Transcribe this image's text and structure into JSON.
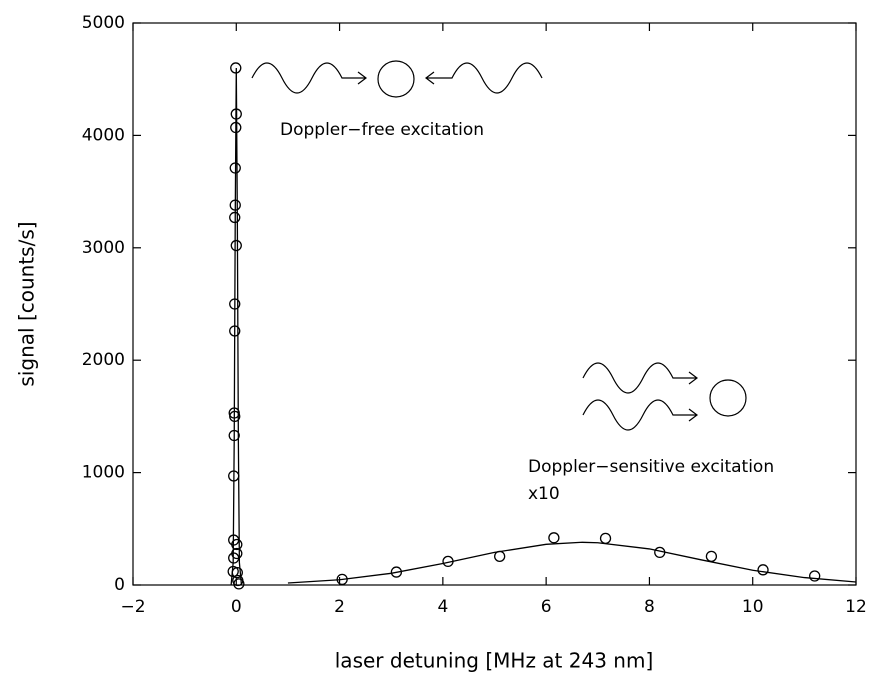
{
  "chart_data": {
    "type": "scatter",
    "x_label": "laser detuning [MHz at 243 nm]",
    "y_label": "signal [counts/s]",
    "annotations": [
      "Doppler−free excitation",
      "Doppler−sensitive excitation",
      "x10"
    ],
    "xlim": [
      -2,
      12
    ],
    "ylim": [
      0,
      5000
    ],
    "xticks": [
      {
        "value": -2,
        "label": "−2"
      },
      0,
      2,
      4,
      6,
      8,
      10,
      12
    ],
    "yticks": [
      0,
      1000,
      2000,
      3000,
      4000,
      5000
    ],
    "series": [
      {
        "style": "points",
        "color": "#000000",
        "x": [
          -0.01,
          0.0,
          -0.01,
          -0.02,
          -0.02,
          -0.03,
          0.0,
          -0.03,
          -0.03,
          -0.04,
          -0.03,
          -0.04,
          -0.05,
          -0.05,
          0.01,
          0.01,
          -0.05,
          -0.06,
          0.02,
          0.03,
          0.05
        ],
        "values": [
          4600,
          4190,
          4070,
          3710,
          3380,
          3270,
          3020,
          2500,
          2260,
          1530,
          1500,
          1330,
          970,
          400,
          360,
          280,
          240,
          120,
          110,
          40,
          10
        ]
      },
      {
        "style": "line",
        "color": "#000000",
        "x": [
          -0.1,
          -0.06,
          -0.04,
          -0.02,
          0.0,
          0.02,
          0.04,
          0.06,
          0.1
        ],
        "values": [
          0,
          200,
          1300,
          3300,
          4600,
          3300,
          1300,
          200,
          0
        ]
      },
      {
        "style": "points",
        "color": "#000000",
        "x": [
          2.05,
          3.1,
          4.1,
          5.1,
          6.15,
          7.15,
          8.2,
          9.2,
          10.2,
          11.2
        ],
        "values": [
          50,
          115,
          210,
          255,
          420,
          415,
          290,
          255,
          135,
          80
        ]
      },
      {
        "style": "line",
        "color": "#000000",
        "x": [
          1,
          2,
          3,
          4,
          5,
          6,
          6.7,
          7,
          8,
          9,
          10,
          11,
          12
        ],
        "values": [
          18,
          47,
          104,
          191,
          290,
          362,
          380,
          376,
          321,
          224,
          131,
          66,
          27
        ]
      }
    ]
  }
}
